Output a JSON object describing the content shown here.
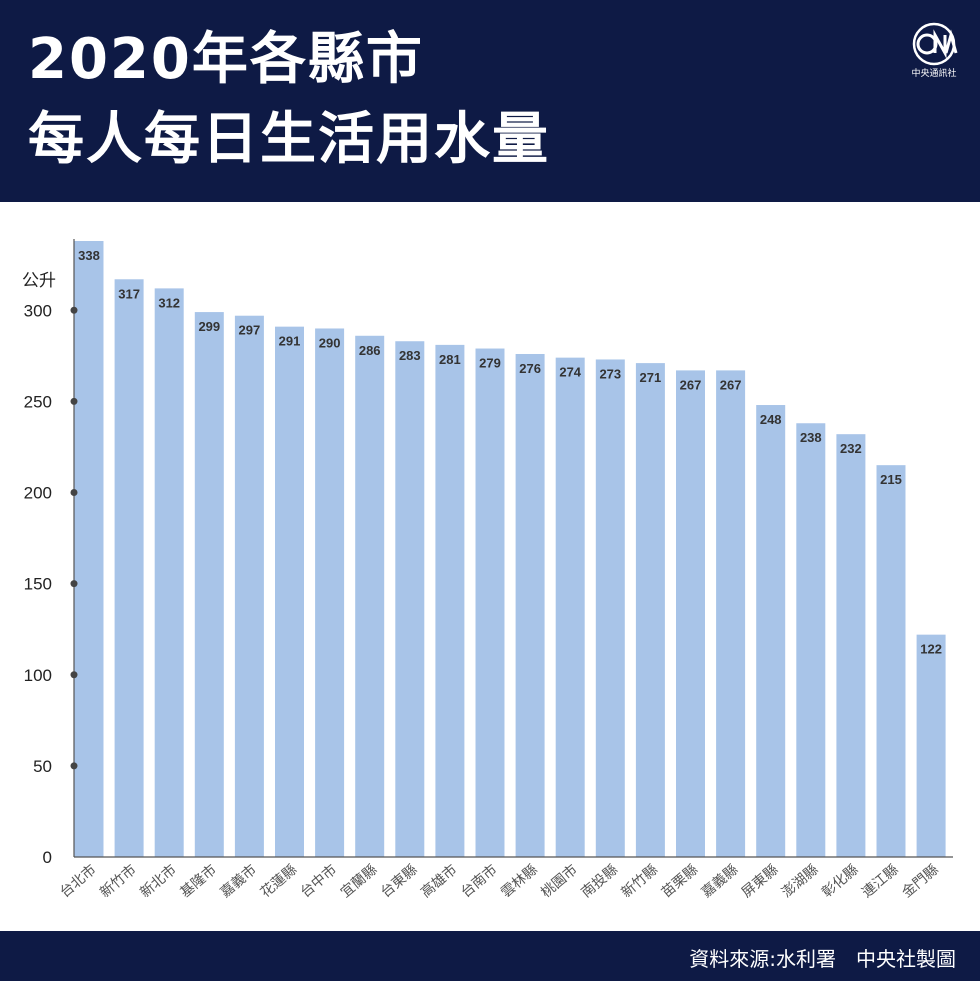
{
  "title": {
    "line1": "2020年各縣市",
    "line2": "每人每日生活用水量"
  },
  "logo": {
    "icon": "cna-logo",
    "text": "中央通訊社"
  },
  "footer": {
    "source": "資料來源:水利署　中央社製圖"
  },
  "chart_data": {
    "type": "bar",
    "ylabel": "公升",
    "ylim": [
      0,
      338
    ],
    "yticks": [
      0,
      50,
      100,
      150,
      200,
      250,
      300
    ],
    "categories": [
      "台北市",
      "新竹市",
      "新北市",
      "基隆市",
      "嘉義市",
      "花蓮縣",
      "台中市",
      "宜蘭縣",
      "台東縣",
      "高雄市",
      "台南市",
      "雲林縣",
      "桃園市",
      "南投縣",
      "新竹縣",
      "苗栗縣",
      "嘉義縣",
      "屏東縣",
      "澎湖縣",
      "彰化縣",
      "連江縣",
      "金門縣"
    ],
    "values": [
      338,
      317,
      312,
      299,
      297,
      291,
      290,
      286,
      283,
      281,
      279,
      276,
      274,
      273,
      271,
      267,
      267,
      248,
      238,
      232,
      215,
      122
    ],
    "bar_color": "#a8c4e8",
    "label_color": "#333333",
    "axis_color": "#555555",
    "grid": false,
    "legend": "none"
  }
}
